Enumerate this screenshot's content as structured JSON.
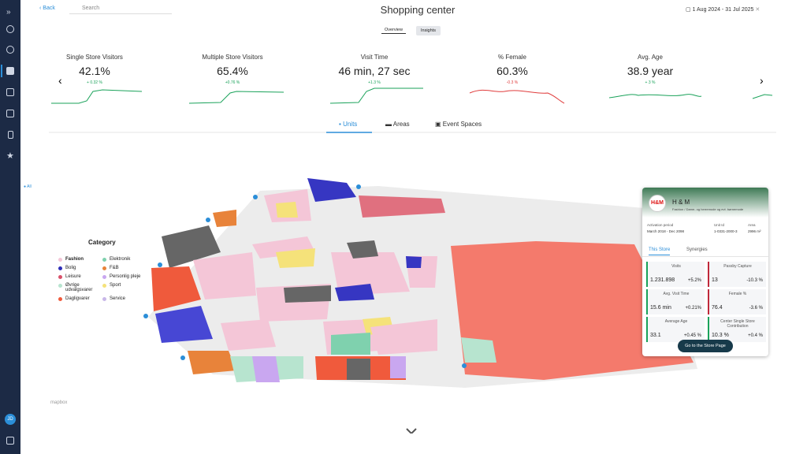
{
  "header": {
    "back": "Back",
    "search": "Search",
    "title": "Shopping center",
    "date_range": "1 Aug 2024 - 31 Jul 2025"
  },
  "view_tabs": [
    "Overview",
    "Insights"
  ],
  "kpis": [
    {
      "label": "Single Store Visitors",
      "value": "42.1%",
      "delta": "+ 0.32 %"
    },
    {
      "label": "Multiple Store Visitors",
      "value": "65.4%",
      "delta": "+0.76 %"
    },
    {
      "label": "Visit Time",
      "value": "46 min, 27 sec",
      "delta": "+1.3 %"
    },
    {
      "label": "% Female",
      "value": "60.3%",
      "delta": "-0.3 %"
    },
    {
      "label": "Avg. Age",
      "value": "38.9 year",
      "delta": "+ 3 %"
    }
  ],
  "map_tabs": [
    "Units",
    "Areas",
    "Event Spaces"
  ],
  "filter": "All",
  "legend": {
    "title": "Category",
    "items": [
      {
        "label": "Fashion",
        "color": "#f4c6d7"
      },
      {
        "label": "Elektronik",
        "color": "#7fd1ae"
      },
      {
        "label": "Bolig",
        "color": "#2e2eb8"
      },
      {
        "label": "F&B",
        "color": "#e8833a"
      },
      {
        "label": "Leisure",
        "color": "#d9506a"
      },
      {
        "label": "Personlig pleje",
        "color": "#c9a7f0"
      },
      {
        "label": "Øvrige udvalgsvarer",
        "color": "#b7e4cf"
      },
      {
        "label": "Sport",
        "color": "#f5e27a"
      },
      {
        "label": "Dagligvarer",
        "color": "#f05a3c"
      },
      {
        "label": "Service",
        "color": "#c8b7e8"
      }
    ]
  },
  "attribution": "mapbox",
  "store_card": {
    "logo": "H&M",
    "name": "H & M",
    "category": "Fashion / Dame- og herremode og evt. børnemode",
    "info": [
      {
        "label": "Activation period",
        "value": "March 2018 - Dec 2098"
      },
      {
        "label": "Unit Id",
        "value": "1-0331-2000-3"
      },
      {
        "label": "Area",
        "value": "2996 m²"
      }
    ],
    "tabs": [
      "This Store",
      "Synergies"
    ],
    "metrics": [
      {
        "label": "Visits",
        "value": "1.231.898",
        "delta": "+5.2%"
      },
      {
        "label": "Passby Capture",
        "value": "13",
        "delta": "-10.3 %"
      },
      {
        "label": "Avg. Visit Time",
        "value": "15.6 min",
        "delta": "+0.21%"
      },
      {
        "label": "Female %",
        "value": "76.4",
        "delta": "-3.6 %"
      },
      {
        "label": "Average Age",
        "value": "33.1",
        "delta": "+0.45 %"
      },
      {
        "label": "Center Single Store Contribution",
        "value": "10.3 %",
        "delta": "+0.4 %"
      }
    ],
    "button": "Go to the Store Page"
  },
  "user": {
    "initials": "JD"
  }
}
